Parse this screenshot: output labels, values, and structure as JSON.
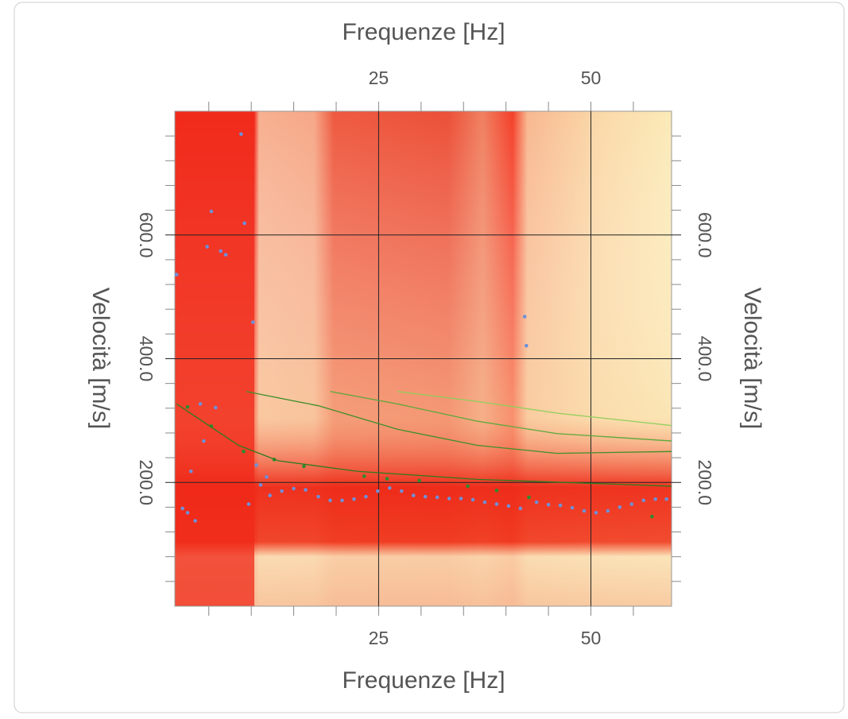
{
  "chart_data": {
    "type": "scatter",
    "xlabel": "Frequenze [Hz]",
    "ylabel": "Velocità [m/s]",
    "xlim": [
      1,
      59.5
    ],
    "ylim": [
      0,
      800
    ],
    "xticks": [
      25,
      50
    ],
    "xminorticks": [
      5,
      10,
      15,
      20,
      30,
      35,
      40,
      45,
      55
    ],
    "yticks": [
      {
        "value": 200,
        "label": "200.0"
      },
      {
        "value": 400,
        "label": "400.0"
      },
      {
        "value": 600,
        "label": "600.0"
      }
    ],
    "yminorticks": [
      40,
      80,
      120,
      160,
      240,
      280,
      320,
      360,
      440,
      480,
      520,
      560,
      640,
      680,
      720,
      760
    ],
    "grid": true,
    "series": [
      {
        "color": "#6f8fd8",
        "mode": "points",
        "x": [
          1.2,
          1.9,
          2.5,
          2.9,
          3.4,
          4.0,
          4.4,
          4.8,
          5.3,
          5.8,
          6.4,
          7.0,
          8.8,
          9.2,
          9.7,
          10.2,
          10.6,
          11.1,
          11.8,
          12.2,
          13.6,
          15.0,
          16.4,
          17.9,
          19.3,
          20.7,
          22.1,
          23.5,
          24.9,
          26.3,
          27.7,
          29.1,
          30.5,
          31.9,
          33.3,
          34.7,
          36.1,
          37.5,
          38.9,
          40.3,
          41.7,
          42.2,
          42.4,
          43.6,
          45.0,
          46.4,
          47.8,
          49.2,
          50.6,
          52.0,
          53.4,
          54.8,
          56.2,
          57.6,
          58.9
        ],
        "values": [
          536,
          158,
          151,
          218,
          138,
          327,
          267,
          581,
          638,
          321,
          574,
          568,
          763,
          619,
          165,
          459,
          228,
          196,
          209,
          179,
          186,
          190,
          188,
          177,
          171,
          171,
          173,
          177,
          186,
          191,
          186,
          179,
          177,
          176,
          174,
          174,
          172,
          168,
          165,
          162,
          158,
          468,
          421,
          168,
          164,
          163,
          159,
          154,
          151,
          154,
          160,
          165,
          171,
          173,
          173
        ]
      },
      {
        "color": "#2e8b2e",
        "mode": "points",
        "x": [
          2.5,
          5.3,
          9.1,
          12.7,
          16.2,
          23.3,
          26.0,
          29.8,
          35.5,
          38.9,
          42.7,
          57.2
        ],
        "values": [
          322,
          291,
          250,
          237,
          226,
          210,
          206,
          203,
          194,
          187,
          176,
          145
        ]
      },
      {
        "color": "#2f7a1f",
        "mode": "line",
        "x": [
          1.2,
          8.5,
          13.2,
          22.5,
          36.6,
          59.5
        ],
        "values": [
          327,
          260,
          235,
          218,
          205,
          194
        ]
      },
      {
        "color": "#3f8f2a",
        "mode": "line",
        "x": [
          9.4,
          17.9,
          27.2,
          36.6,
          46.0,
          59.5
        ],
        "values": [
          347,
          324,
          286,
          260,
          247,
          250
        ]
      },
      {
        "color": "#5aa83a",
        "mode": "line",
        "x": [
          19.3,
          27.2,
          36.6,
          46.0,
          59.5
        ],
        "values": [
          347,
          327,
          299,
          279,
          267
        ]
      },
      {
        "color": "#8fcf5a",
        "mode": "line",
        "x": [
          27.2,
          36.6,
          46.0,
          59.5
        ],
        "values": [
          347,
          331,
          312,
          292
        ]
      }
    ]
  }
}
